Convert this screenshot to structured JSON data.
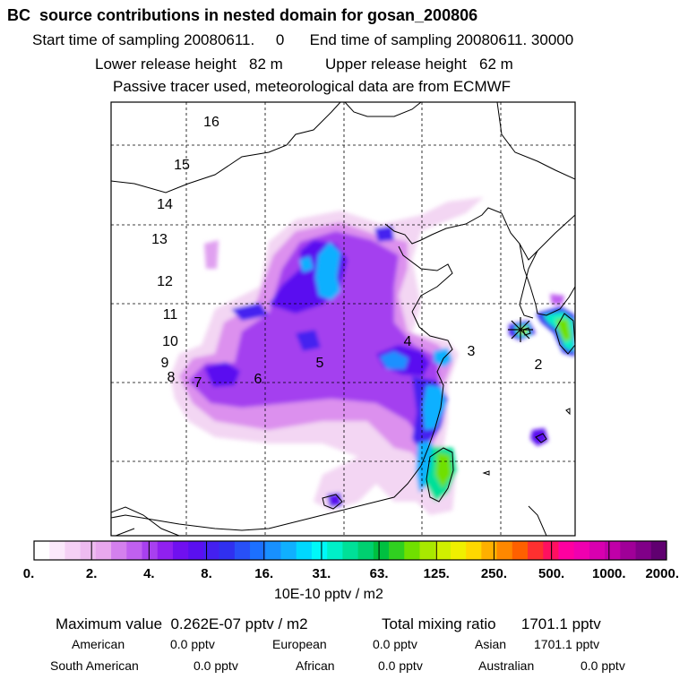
{
  "header": {
    "title": "BC  source contributions in nested domain for gosan_200806",
    "times": "Start time of sampling 20080611.     0      End time of sampling 20080611. 30000",
    "heights": "Lower release height   82 m          Upper release height   62 m",
    "tracer": "Passive tracer used, meteorological data are from ECMWF"
  },
  "chart_data": {
    "type": "heatmap",
    "title": "BC  source contributions in nested domain for gosan_200806",
    "colorbar": {
      "ticks": [
        "0.",
        "2.",
        "4.",
        "8.",
        "16.",
        "31.",
        "63.",
        "125.",
        "250.",
        "500.",
        "1000.",
        "2000."
      ],
      "colors": [
        "#ffffff",
        "#fbe8fb",
        "#f5d0f5",
        "#eebbf0",
        "#e8a8ee",
        "#d480ee",
        "#c060f0",
        "#a840f0",
        "#9020f0",
        "#7010f0",
        "#5a10f0",
        "#4420f0",
        "#3030f0",
        "#2850f8",
        "#1c70ff",
        "#1890ff",
        "#10b0ff",
        "#00d8ff",
        "#00f8f8",
        "#00f0c8",
        "#00e098",
        "#00d070",
        "#00c040",
        "#30d020",
        "#70e000",
        "#a8e800",
        "#d0f000",
        "#f0f000",
        "#ffd800",
        "#ffb000",
        "#ff8800",
        "#ff6000",
        "#ff3030",
        "#ff1060",
        "#ff00a0",
        "#f000b0",
        "#d800b0",
        "#c000a8",
        "#a00098",
        "#800088",
        "#600070"
      ],
      "unit": "10E-10 pptv / m2"
    },
    "regions": [
      "16",
      "15",
      "14",
      "13",
      "12",
      "11",
      "10",
      "9",
      "8",
      "7",
      "6",
      "5",
      "4",
      "3",
      "2"
    ],
    "receptor": "gosan"
  },
  "stats": {
    "max": "Maximum value  0.262E-07 pptv / m2",
    "total": "Total mixing ratio      1701.1 pptv",
    "american_label": "American",
    "american_val": "0.0 pptv",
    "european_label": "European",
    "european_val": "0.0 pptv",
    "asian_label": "Asian",
    "asian_val": "1701.1 pptv",
    "samerican_label": "South American",
    "samerican_val": "0.0 pptv",
    "african_label": "African",
    "african_val": "0.0 pptv",
    "australian_label": "Australian",
    "australian_val": "0.0 pptv"
  }
}
